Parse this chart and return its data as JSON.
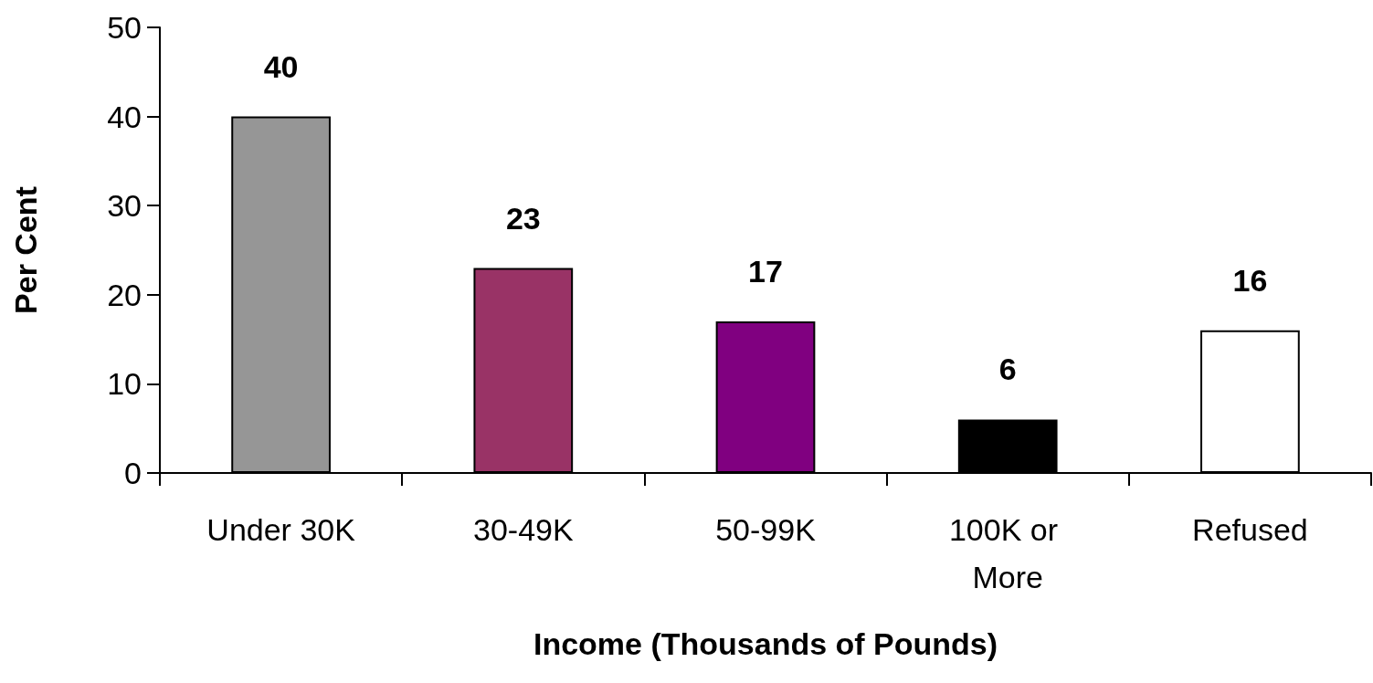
{
  "chart_data": {
    "type": "bar",
    "xlabel": "Income (Thousands of Pounds)",
    "ylabel": "Per Cent",
    "categories": [
      "Under 30K",
      "30-49K",
      "50-99K",
      "100K or More",
      "Refused"
    ],
    "values": [
      40,
      23,
      17,
      6,
      16
    ],
    "colors": [
      "#969696",
      "#993366",
      "#800080",
      "#000000",
      "#ffffff"
    ],
    "ylim": [
      0,
      50
    ],
    "yticks": [
      0,
      10,
      20,
      30,
      40,
      50
    ],
    "data_labels": true,
    "grid": false
  }
}
